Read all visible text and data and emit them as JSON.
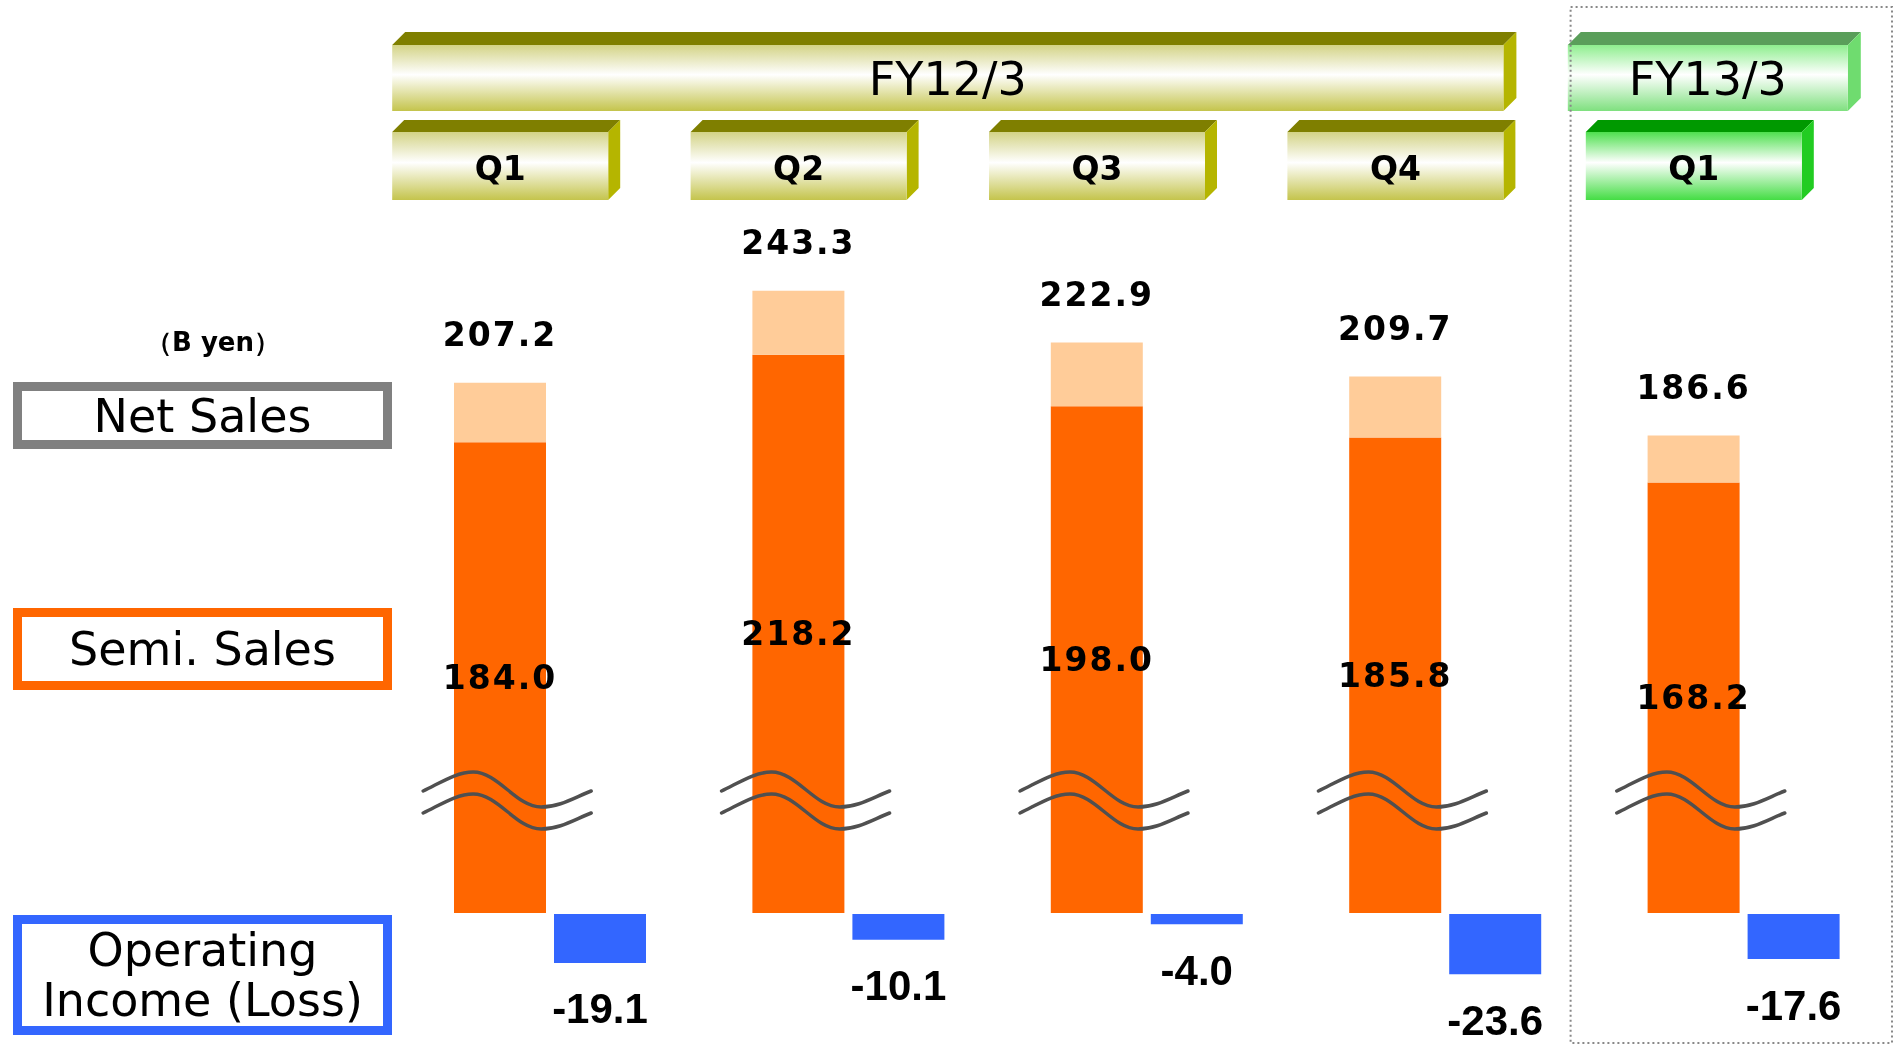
{
  "chart_data": [
    {
      "type": "bar",
      "ylabel": "（B yen）",
      "categories": [
        "Q1",
        "Q2",
        "Q3",
        "Q4",
        "Q1"
      ],
      "series": [
        {
          "name": "Semi. Sales",
          "color": "#ff6600",
          "values": [
            184.0,
            218.2,
            198.0,
            185.8,
            168.2
          ],
          "value_labels": [
            "184.0",
            "218.2",
            "198.0",
            "185.8",
            "168.2"
          ]
        },
        {
          "color": "#ffcc99",
          "values": [
            23.2,
            25.1,
            24.9,
            23.9,
            18.4
          ]
        }
      ],
      "stacked": true,
      "totals": [
        "207.2",
        "243.3",
        "222.9",
        "209.7",
        "186.6"
      ],
      "annotations": [
        "FY12/3",
        "FY13/3",
        "Net Sales"
      ],
      "legend": "left"
    },
    {
      "type": "bar",
      "categories": [
        null,
        null,
        null,
        null,
        null
      ],
      "series": [
        {
          "name": "Operating Income (Loss)",
          "color": "#3366ff",
          "values": [
            -19.1,
            -10.1,
            -4.0,
            -23.6,
            -17.6
          ],
          "value_labels": [
            "-19.1",
            "-10.1",
            "-4.0",
            "-23.6",
            "-17.6"
          ]
        }
      ],
      "tick_labels": false,
      "legend": "left"
    }
  ]
}
